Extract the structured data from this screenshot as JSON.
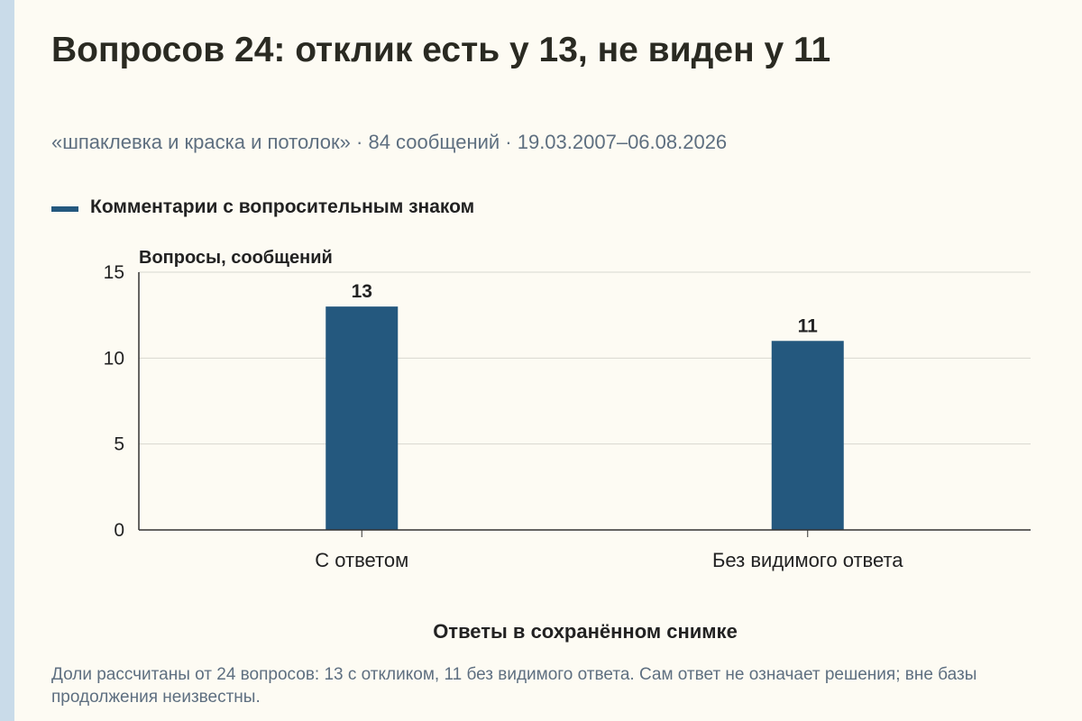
{
  "title": "Вопросов 24: отклик есть у 13, не виден у 11",
  "subtitle": "«шпаклевка и краска и потолок» · 84 сообщений · 19.03.2007–06.08.2026",
  "footnote": "Доли рассчитаны от 24 вопросов: 13 с откликом, 11 без видимого ответа. Сам ответ не означает решения; вне базы продолжения неизвестны.",
  "colors": {
    "bar": "#24587e",
    "grid": "#d8d8d0",
    "axis": "#333333"
  },
  "chart_data": {
    "type": "bar",
    "categories": [
      "С ответом",
      "Без видимого ответа"
    ],
    "series": [
      {
        "name": "Комментарии с вопросительным знаком",
        "values": [
          13,
          11
        ]
      }
    ],
    "ylabel": "Вопросы, сообщений",
    "xlabel": "Ответы в сохранённом снимке",
    "ylim": [
      0,
      15
    ],
    "yticks": [
      0,
      5,
      10,
      15
    ],
    "grid": true,
    "legend": "top-left"
  }
}
